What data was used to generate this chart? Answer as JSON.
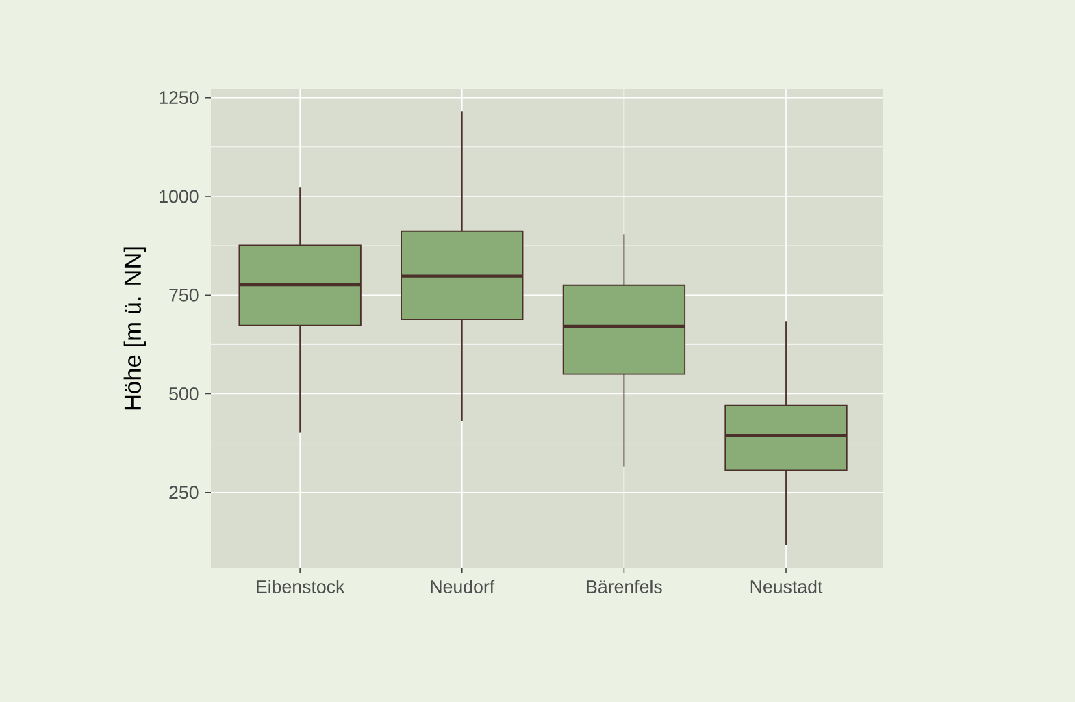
{
  "chart_data": {
    "type": "box",
    "ylabel": "Höhe [m ü. NN]",
    "categories": [
      "Eibenstock",
      "Neudorf",
      "Bärenfels",
      "Neustadt"
    ],
    "boxes": [
      {
        "low": 401,
        "q1": 673,
        "median": 776,
        "q3": 876,
        "high": 1022
      },
      {
        "low": 431,
        "q1": 688,
        "median": 798,
        "q3": 912,
        "high": 1216
      },
      {
        "low": 316,
        "q1": 550,
        "median": 671,
        "q3": 775,
        "high": 904
      },
      {
        "low": 117,
        "q1": 306,
        "median": 395,
        "q3": 470,
        "high": 684
      }
    ],
    "color": "#8aad78",
    "ylim": [
      59,
      1272
    ],
    "yticks": [
      250,
      500,
      750,
      1000,
      1250
    ],
    "grid": true
  }
}
